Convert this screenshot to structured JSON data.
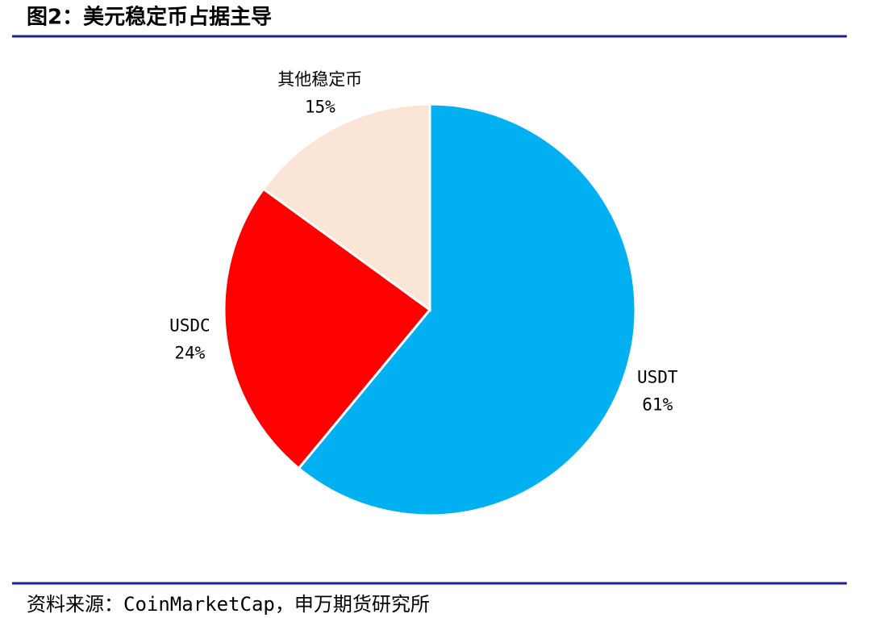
{
  "chart_data": {
    "type": "pie",
    "title": "图2：美元稳定币占据主导",
    "source": "资料来源：CoinMarketCap，申万期货研究所",
    "categories": [
      "USDT",
      "USDC",
      "其他稳定币"
    ],
    "values": [
      61,
      24,
      15
    ],
    "value_labels": [
      "61%",
      "24%",
      "15%"
    ],
    "colors": [
      "#00b0f0",
      "#ff0000",
      "#fbe5d6"
    ]
  }
}
